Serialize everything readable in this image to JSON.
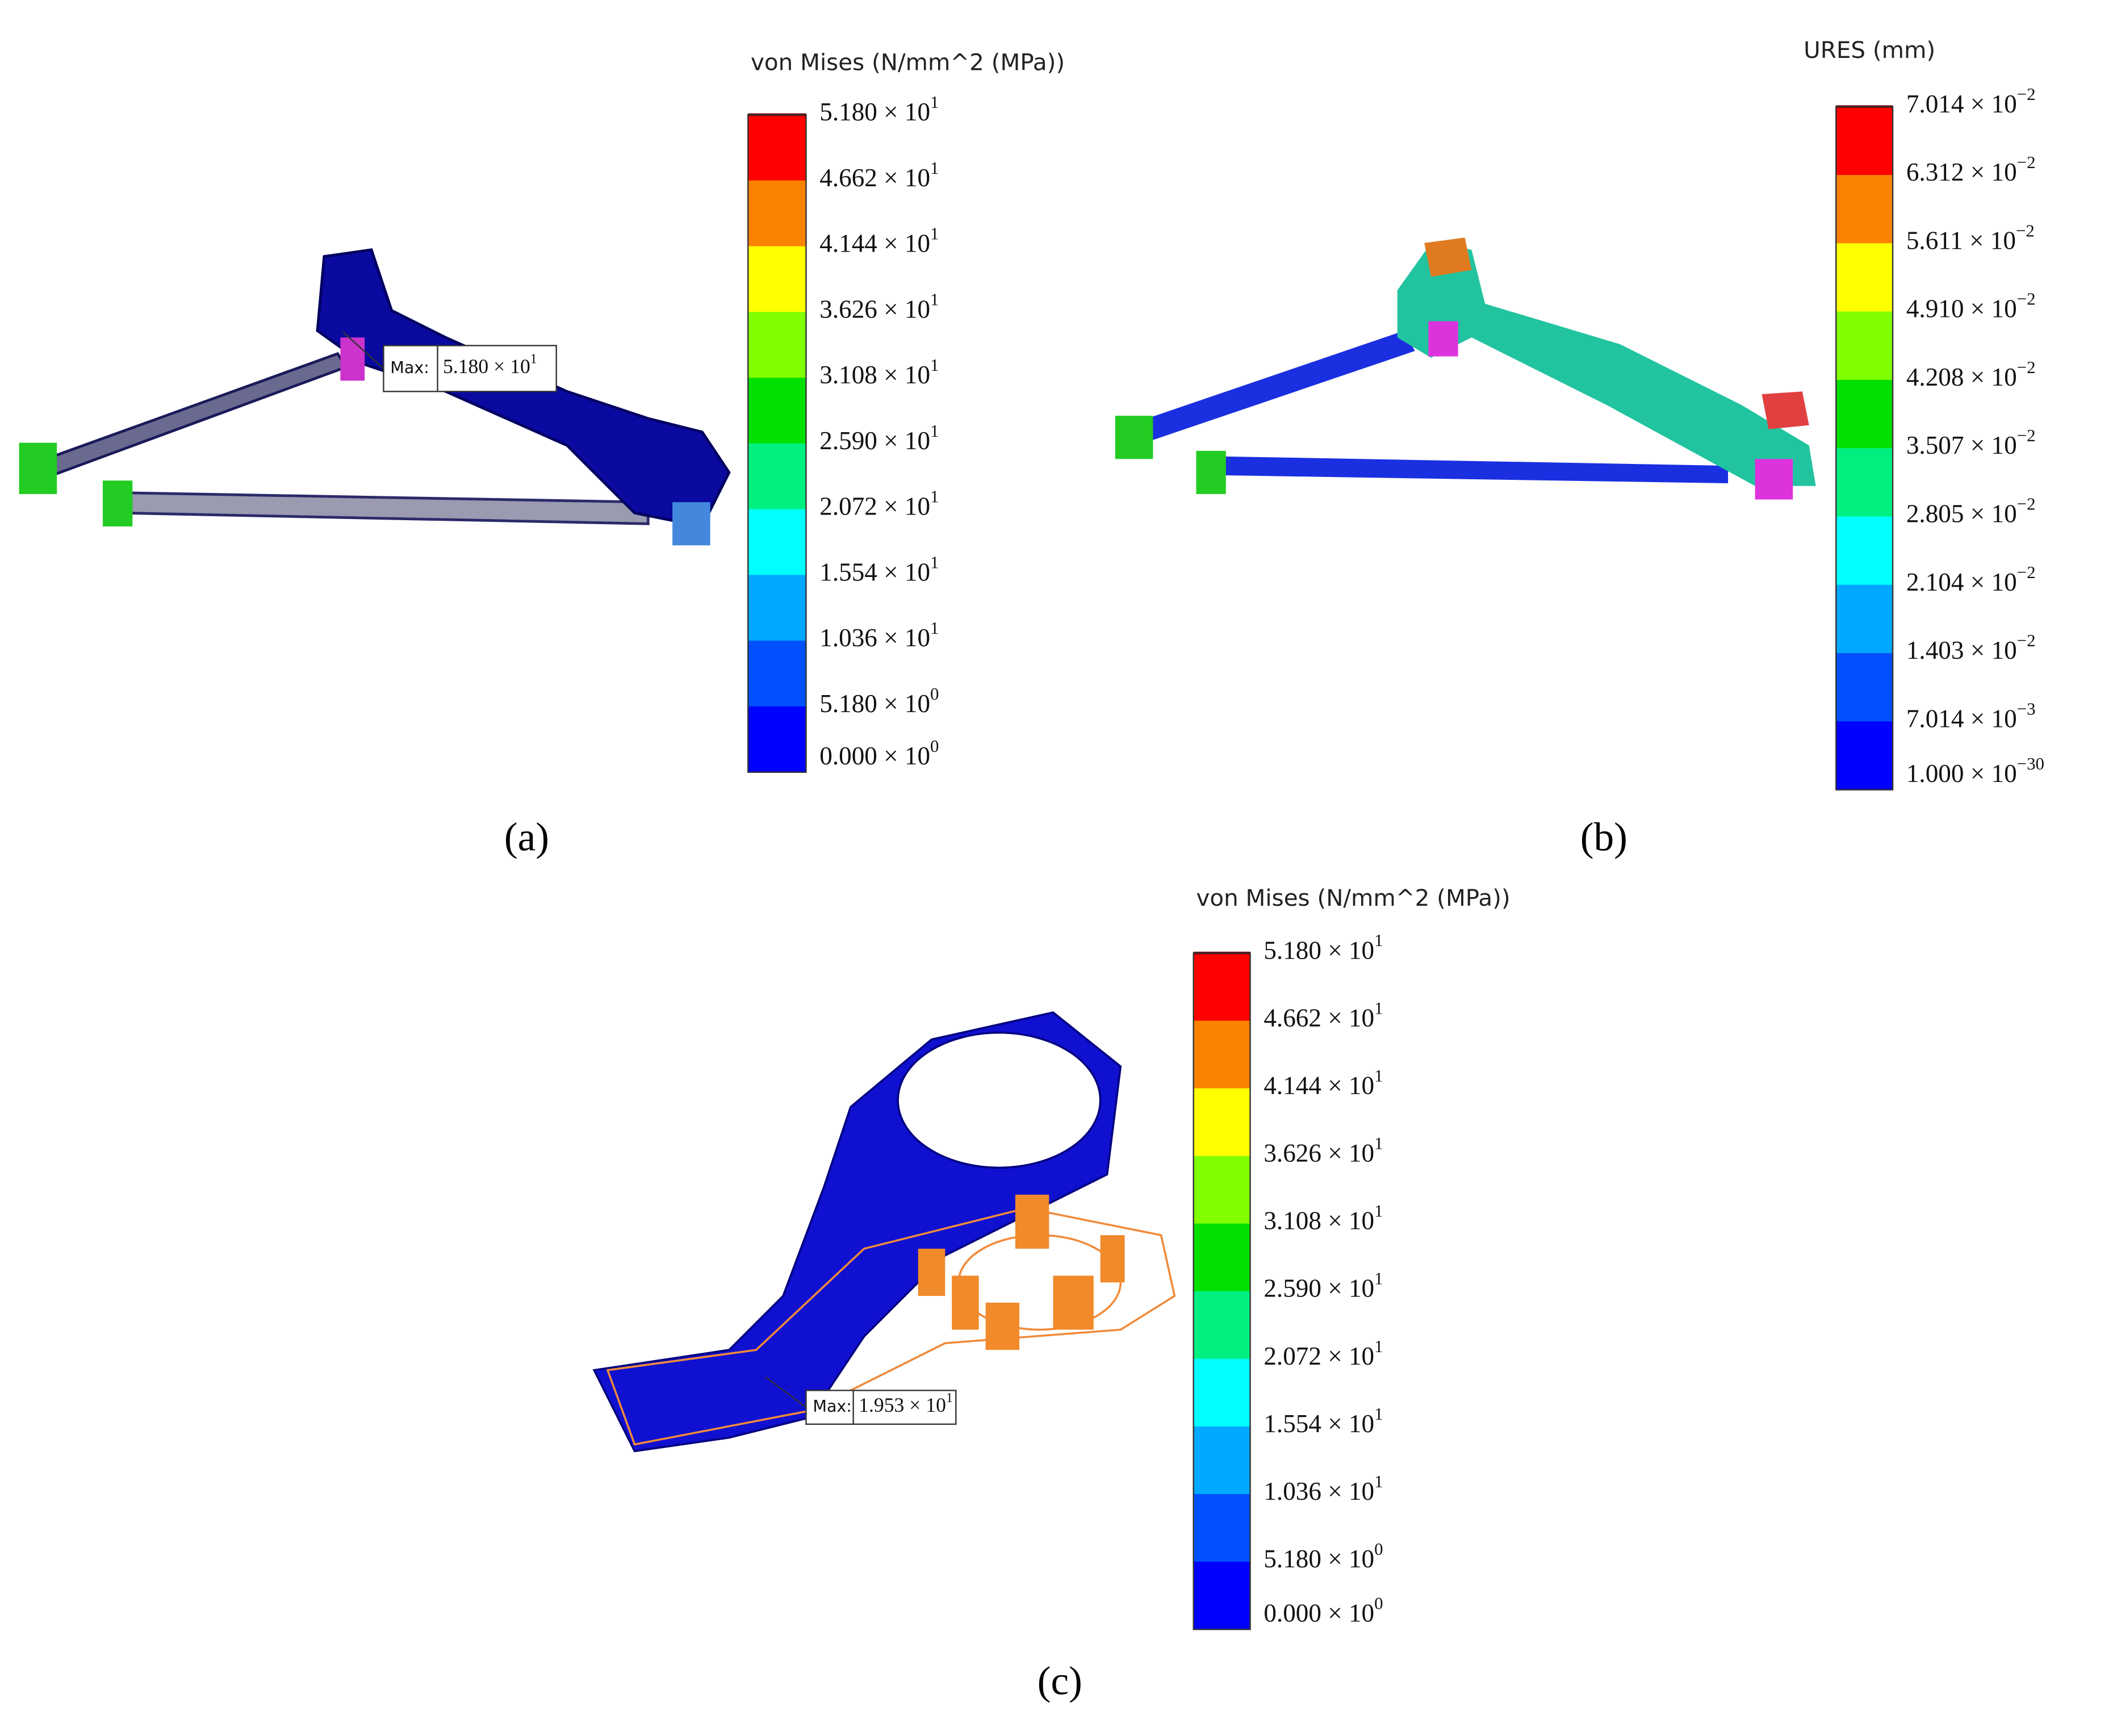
{
  "panels": [
    {
      "label": "(a)",
      "legend": {
        "title": "von Mises (N/mm^2 (MPa))",
        "colors": [
          "#ff0000",
          "#fb8200",
          "#ffff00",
          "#80ff00",
          "#00e000",
          "#00f080",
          "#00ffff",
          "#00a8ff",
          "#0050ff",
          "#0000ff"
        ],
        "ticks": [
          {
            "mantissa": "5.180 × 10",
            "exponent": "1"
          },
          {
            "mantissa": "4.662 × 10",
            "exponent": "1"
          },
          {
            "mantissa": "4.144 × 10",
            "exponent": "1"
          },
          {
            "mantissa": "3.626 × 10",
            "exponent": "1"
          },
          {
            "mantissa": "3.108 × 10",
            "exponent": "1"
          },
          {
            "mantissa": "2.590 × 10",
            "exponent": "1"
          },
          {
            "mantissa": "2.072 × 10",
            "exponent": "1"
          },
          {
            "mantissa": "1.554 × 10",
            "exponent": "1"
          },
          {
            "mantissa": "1.036 × 10",
            "exponent": "1"
          },
          {
            "mantissa": "5.180 × 10",
            "exponent": "0"
          },
          {
            "mantissa": "0.000 × 10",
            "exponent": "0"
          }
        ]
      },
      "annotation": {
        "prefix": "Max:",
        "mantissa": "5.180 × 10",
        "exponent": "1"
      }
    },
    {
      "label": "(b)",
      "legend": {
        "title": "URES (mm)",
        "colors": [
          "#ff0000",
          "#fb8200",
          "#ffff00",
          "#80ff00",
          "#00e000",
          "#00f080",
          "#00ffff",
          "#00a8ff",
          "#0050ff",
          "#0000ff"
        ],
        "ticks": [
          {
            "mantissa": "7.014 × 10",
            "exponent": "−2"
          },
          {
            "mantissa": "6.312 × 10",
            "exponent": "−2"
          },
          {
            "mantissa": "5.611 × 10",
            "exponent": "−2"
          },
          {
            "mantissa": "4.910 × 10",
            "exponent": "−2"
          },
          {
            "mantissa": "4.208 × 10",
            "exponent": "−2"
          },
          {
            "mantissa": "3.507 × 10",
            "exponent": "−2"
          },
          {
            "mantissa": "2.805 × 10",
            "exponent": "−2"
          },
          {
            "mantissa": "2.104 × 10",
            "exponent": "−2"
          },
          {
            "mantissa": "1.403 × 10",
            "exponent": "−2"
          },
          {
            "mantissa": "7.014 × 10",
            "exponent": "−3"
          },
          {
            "mantissa": "1.000 × 10",
            "exponent": "−30"
          }
        ]
      }
    },
    {
      "label": "(c)",
      "legend": {
        "title": "von Mises (N/mm^2 (MPa))",
        "colors": [
          "#ff0000",
          "#fb8200",
          "#ffff00",
          "#80ff00",
          "#00e000",
          "#00f080",
          "#00ffff",
          "#00a8ff",
          "#0050ff",
          "#0000ff"
        ],
        "ticks": [
          {
            "mantissa": "5.180 × 10",
            "exponent": "1"
          },
          {
            "mantissa": "4.662 × 10",
            "exponent": "1"
          },
          {
            "mantissa": "4.144 × 10",
            "exponent": "1"
          },
          {
            "mantissa": "3.626 × 10",
            "exponent": "1"
          },
          {
            "mantissa": "3.108 × 10",
            "exponent": "1"
          },
          {
            "mantissa": "2.590 × 10",
            "exponent": "1"
          },
          {
            "mantissa": "2.072 × 10",
            "exponent": "1"
          },
          {
            "mantissa": "1.554 × 10",
            "exponent": "1"
          },
          {
            "mantissa": "1.036 × 10",
            "exponent": "1"
          },
          {
            "mantissa": "5.180 × 10",
            "exponent": "0"
          },
          {
            "mantissa": "0.000 × 10",
            "exponent": "0"
          }
        ]
      },
      "annotation": {
        "prefix": "Max:",
        "mantissa": "1.953 × 10",
        "exponent": "1"
      }
    }
  ]
}
